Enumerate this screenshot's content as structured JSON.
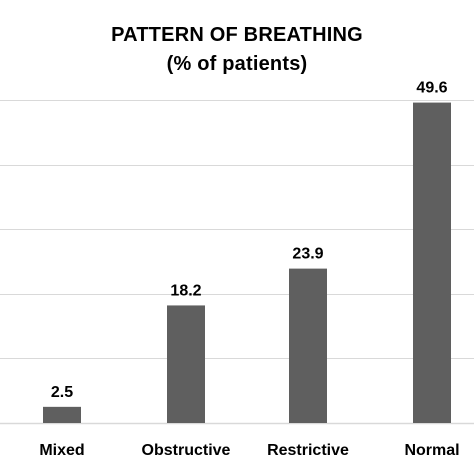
{
  "chart_data": {
    "type": "bar",
    "title": "PATTERN OF BREATHING",
    "subtitle": "(% of patients)",
    "categories": [
      "Mixed",
      "Obstructive",
      "Restrictive",
      "Normal"
    ],
    "values": [
      2.5,
      18.2,
      23.9,
      49.6
    ],
    "data_labels": [
      "2.5",
      "18.2",
      "23.9",
      "49.6"
    ],
    "ylim": [
      0,
      50
    ],
    "grid": true,
    "colors": {
      "bar": "#5f5f5f",
      "grid": "#d9d9d9",
      "text": "#000000"
    }
  }
}
